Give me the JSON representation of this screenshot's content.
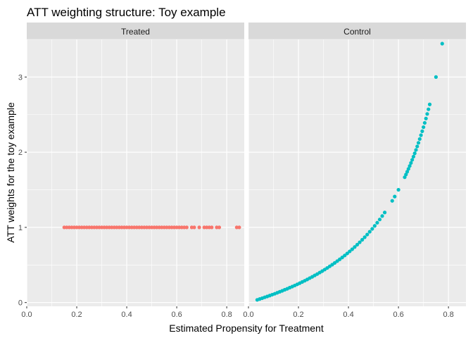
{
  "chart_data": {
    "type": "scatter",
    "title": "ATT weighting structure: Toy example",
    "xlabel": "Estimated Propensity for Treatment",
    "ylabel": "ATT weights for the toy example",
    "xlim": [
      0.0,
      0.87
    ],
    "ylim": [
      -0.05,
      3.5
    ],
    "x_ticks": [
      "0.0",
      "0.2",
      "0.4",
      "0.6",
      "0.8"
    ],
    "x_tick_values": [
      0.0,
      0.2,
      0.4,
      0.6,
      0.8
    ],
    "y_ticks": [
      "0",
      "1",
      "2",
      "3"
    ],
    "y_tick_values": [
      0,
      1,
      2,
      3
    ],
    "grid": true,
    "legend": "none",
    "panel_background": "#ebebeb",
    "strip_background": "#d9d9d9",
    "grid_color": "#ffffff",
    "panels": [
      {
        "strip": "Treated",
        "color": "#f8766d",
        "points_x": [
          0.15,
          0.16,
          0.17,
          0.18,
          0.19,
          0.2,
          0.21,
          0.22,
          0.23,
          0.24,
          0.25,
          0.26,
          0.27,
          0.28,
          0.29,
          0.3,
          0.31,
          0.32,
          0.33,
          0.34,
          0.35,
          0.36,
          0.37,
          0.38,
          0.39,
          0.4,
          0.41,
          0.42,
          0.43,
          0.44,
          0.45,
          0.46,
          0.47,
          0.48,
          0.49,
          0.5,
          0.51,
          0.52,
          0.53,
          0.54,
          0.55,
          0.56,
          0.57,
          0.58,
          0.59,
          0.6,
          0.61,
          0.62,
          0.63,
          0.64,
          0.66,
          0.67,
          0.69,
          0.71,
          0.72,
          0.73,
          0.74,
          0.76,
          0.77,
          0.84,
          0.85
        ],
        "points_y": [
          1,
          1,
          1,
          1,
          1,
          1,
          1,
          1,
          1,
          1,
          1,
          1,
          1,
          1,
          1,
          1,
          1,
          1,
          1,
          1,
          1,
          1,
          1,
          1,
          1,
          1,
          1,
          1,
          1,
          1,
          1,
          1,
          1,
          1,
          1,
          1,
          1,
          1,
          1,
          1,
          1,
          1,
          1,
          1,
          1,
          1,
          1,
          1,
          1,
          1,
          1,
          1,
          1,
          1,
          1,
          1,
          1,
          1,
          1,
          1,
          1
        ]
      },
      {
        "strip": "Control",
        "color": "#00bfc4",
        "points_x": [
          0.035,
          0.045,
          0.055,
          0.065,
          0.075,
          0.085,
          0.095,
          0.105,
          0.115,
          0.125,
          0.135,
          0.145,
          0.155,
          0.165,
          0.175,
          0.185,
          0.195,
          0.205,
          0.215,
          0.225,
          0.235,
          0.245,
          0.255,
          0.265,
          0.275,
          0.285,
          0.295,
          0.305,
          0.315,
          0.325,
          0.335,
          0.345,
          0.355,
          0.365,
          0.375,
          0.385,
          0.395,
          0.405,
          0.415,
          0.425,
          0.435,
          0.445,
          0.455,
          0.465,
          0.475,
          0.485,
          0.495,
          0.505,
          0.515,
          0.525,
          0.535,
          0.545,
          0.575,
          0.585,
          0.6,
          0.625,
          0.63,
          0.635,
          0.64,
          0.645,
          0.65,
          0.655,
          0.66,
          0.665,
          0.67,
          0.675,
          0.68,
          0.685,
          0.69,
          0.695,
          0.7,
          0.705,
          0.71,
          0.715,
          0.72,
          0.725,
          0.75,
          0.775
        ],
        "points_y": [
          0.036,
          0.047,
          0.058,
          0.07,
          0.081,
          0.093,
          0.105,
          0.117,
          0.13,
          0.143,
          0.156,
          0.17,
          0.183,
          0.198,
          0.212,
          0.227,
          0.242,
          0.258,
          0.274,
          0.29,
          0.307,
          0.325,
          0.342,
          0.361,
          0.379,
          0.399,
          0.418,
          0.439,
          0.46,
          0.482,
          0.504,
          0.527,
          0.551,
          0.575,
          0.6,
          0.626,
          0.653,
          0.681,
          0.709,
          0.739,
          0.77,
          0.802,
          0.835,
          0.869,
          0.905,
          0.942,
          0.98,
          1.02,
          1.062,
          1.105,
          1.151,
          1.198,
          1.353,
          1.41,
          1.5,
          1.667,
          1.703,
          1.74,
          1.778,
          1.817,
          1.857,
          1.899,
          1.941,
          1.985,
          2.03,
          2.077,
          2.125,
          2.175,
          2.226,
          2.279,
          2.333,
          2.39,
          2.448,
          2.509,
          2.571,
          2.636,
          3.0,
          3.444
        ]
      }
    ]
  }
}
